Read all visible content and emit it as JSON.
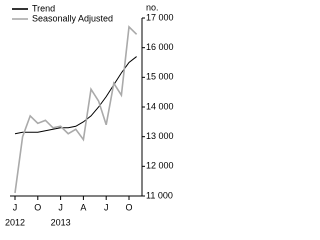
{
  "chart_data": {
    "type": "line",
    "y_label": "no.",
    "categories": [
      "J",
      null,
      null,
      "O",
      null,
      null,
      "J",
      null,
      null,
      "A",
      null,
      null,
      "J",
      null,
      null,
      "O",
      null
    ],
    "category_years": [
      "2012",
      null,
      null,
      null,
      null,
      null,
      "2013",
      null,
      null,
      null,
      null,
      null,
      null,
      null,
      null,
      null,
      null
    ],
    "series": [
      {
        "name": "Trend",
        "color": "#000000",
        "values": [
          13100,
          13150,
          13150,
          13150,
          13200,
          13250,
          13300,
          13300,
          13350,
          13500,
          13700,
          14000,
          14350,
          14750,
          15150,
          15500,
          15700
        ]
      },
      {
        "name": "Seasonally Adjusted",
        "color": "#aaaaaa",
        "values": [
          11100,
          13000,
          13700,
          13450,
          13550,
          13300,
          13350,
          13100,
          13250,
          12900,
          14600,
          14200,
          13400,
          14800,
          14400,
          16700,
          16450
        ]
      }
    ],
    "ylim": [
      11000,
      17000
    ],
    "yticks": [
      {
        "value": 11000,
        "label": "11 000"
      },
      {
        "value": 12000,
        "label": "12 000"
      },
      {
        "value": 13000,
        "label": "13 000"
      },
      {
        "value": 14000,
        "label": "14 000"
      },
      {
        "value": 15000,
        "label": "15 000"
      },
      {
        "value": 16000,
        "label": "16 000"
      },
      {
        "value": 17000,
        "label": "17 000"
      }
    ],
    "legend": "top-left"
  }
}
